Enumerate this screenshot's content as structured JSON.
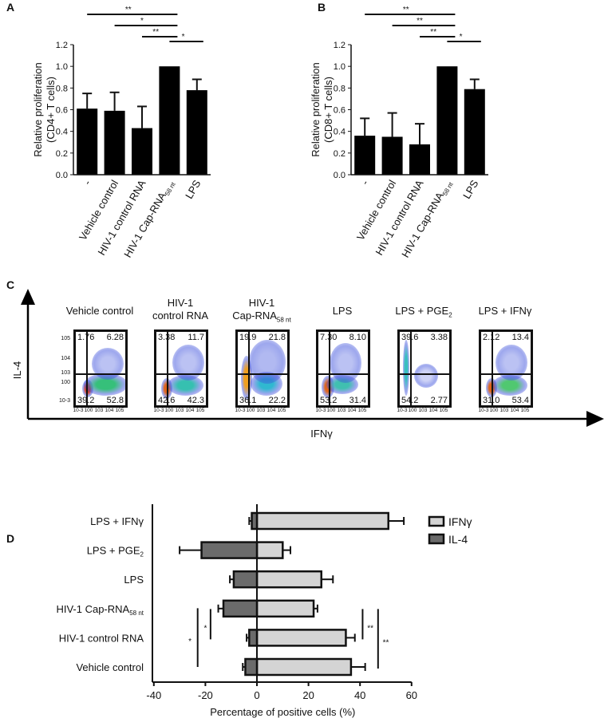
{
  "chart_data": [
    {
      "panel": "A",
      "type": "bar",
      "ylabel": [
        "Relative proliferation",
        "(CD4+ T cells)"
      ],
      "ylim": [
        0,
        1.2
      ],
      "yticks": [
        "0.0",
        "0.2",
        "0.4",
        "0.6",
        "0.8",
        "1.0",
        "1.2"
      ],
      "categories": [
        "-",
        "Vehicle control",
        "HIV-1 control RNA",
        "HIV-1 Cap-RNA58 nt",
        "LPS"
      ],
      "values": [
        0.61,
        0.59,
        0.43,
        1.0,
        0.78
      ],
      "errors": [
        0.14,
        0.17,
        0.2,
        0,
        0.1
      ],
      "significance": [
        {
          "from": 0,
          "to": 3,
          "label": "**"
        },
        {
          "from": 1,
          "to": 3,
          "label": "*"
        },
        {
          "from": 2,
          "to": 3,
          "label": "**"
        },
        {
          "from": 3,
          "to": 4,
          "label": "*"
        }
      ]
    },
    {
      "panel": "B",
      "type": "bar",
      "ylabel": [
        "Relative proliferation",
        "(CD8+ T cells)"
      ],
      "ylim": [
        0,
        1.2
      ],
      "yticks": [
        "0.0",
        "0.2",
        "0.4",
        "0.6",
        "0.8",
        "1.0",
        "1.2"
      ],
      "categories": [
        "-",
        "Vehicle control",
        "HIV-1 control RNA",
        "HIV-1 Cap-RNA58 nt",
        "LPS"
      ],
      "values": [
        0.36,
        0.35,
        0.28,
        1.0,
        0.79
      ],
      "errors": [
        0.16,
        0.22,
        0.19,
        0,
        0.09
      ],
      "significance": [
        {
          "from": 0,
          "to": 3,
          "label": "**"
        },
        {
          "from": 1,
          "to": 3,
          "label": "**"
        },
        {
          "from": 2,
          "to": 3,
          "label": "**"
        },
        {
          "from": 3,
          "to": 4,
          "label": "*"
        }
      ]
    },
    {
      "panel": "C",
      "type": "scatter",
      "xlabel": "IFNγ",
      "ylabel": "IL-4",
      "ticks": [
        "10-3",
        "100",
        "103",
        "104",
        "105"
      ],
      "plots": [
        {
          "title": [
            "Vehicle control",
            ""
          ],
          "ul": "1.76",
          "ur": "6.28",
          "ll": "39.2",
          "lr": "52.8"
        },
        {
          "title": [
            "HIV-1",
            "control RNA"
          ],
          "ul": "3.38",
          "ur": "11.7",
          "ll": "42.6",
          "lr": "42.3"
        },
        {
          "title": [
            "HIV-1",
            "Cap-RNA58 nt"
          ],
          "ul": "19.9",
          "ur": "21.8",
          "ll": "36.1",
          "lr": "22.2"
        },
        {
          "title": [
            "LPS",
            ""
          ],
          "ul": "7.30",
          "ur": "8.10",
          "ll": "53.2",
          "lr": "31.4"
        },
        {
          "title": [
            "LPS + PGE2",
            ""
          ],
          "ul": "39.6",
          "ur": "3.38",
          "ll": "54.2",
          "lr": "2.77"
        },
        {
          "title": [
            "LPS + IFNγ",
            ""
          ],
          "ul": "2.12",
          "ur": "13.4",
          "ll": "31.0",
          "lr": "53.4"
        }
      ]
    },
    {
      "panel": "D",
      "type": "bar",
      "orientation": "horizontal",
      "xlabel": "Percentage of positive cells (%)",
      "xlim": [
        -40,
        60
      ],
      "xticks": [
        "-40",
        "-20",
        "0",
        "20",
        "40",
        "60"
      ],
      "categories": [
        "LPS + IFNγ",
        "LPS + PGE2",
        "LPS",
        "HIV-1 Cap-RNA58 nt",
        "HIV-1 control RNA",
        "Vehicle control"
      ],
      "series": [
        {
          "name": "IFNγ",
          "color": "#d4d4d4",
          "values": [
            51,
            10,
            25,
            22,
            34.5,
            36.5
          ],
          "errors": [
            6,
            3,
            4.5,
            1.5,
            3.5,
            5.5
          ]
        },
        {
          "name": "IL-4",
          "color": "#6b6b6b",
          "values": [
            -2,
            -21.5,
            -9,
            -13,
            -3,
            -4.5
          ],
          "errors": [
            1,
            8.5,
            1.5,
            2,
            1,
            1
          ]
        }
      ],
      "significance": [
        {
          "label": "*",
          "side": "IL-4"
        },
        {
          "label": "*",
          "side": "IL-4"
        },
        {
          "label": "**",
          "side": "IFNγ"
        },
        {
          "label": "**",
          "side": "IFNγ"
        }
      ]
    }
  ],
  "panels": {
    "a": "A",
    "b": "B",
    "c": "C",
    "d": "D"
  }
}
